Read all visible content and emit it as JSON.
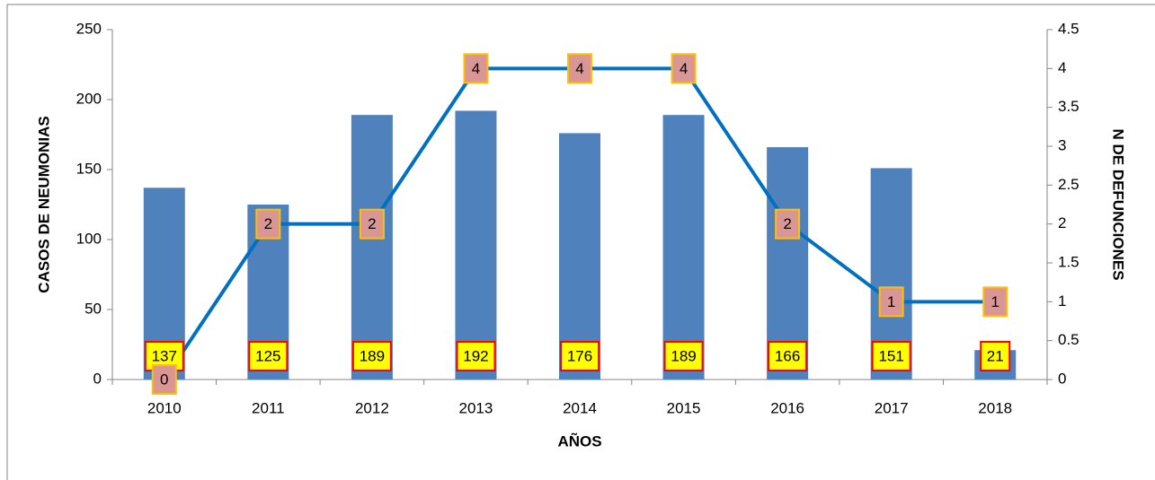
{
  "chart_data": {
    "type": "bar",
    "xlabel": "AÑOS",
    "ylabel": "CASOS DE NEUMONIAS",
    "y2label": "N DE DEFUNCIONES",
    "categories": [
      "2010",
      "2011",
      "2012",
      "2013",
      "2014",
      "2015",
      "2016",
      "2017",
      "2018"
    ],
    "series": [
      {
        "type": "bar",
        "color": "#4f81bd",
        "values": [
          137,
          125,
          189,
          192,
          176,
          189,
          166,
          151,
          21
        ]
      },
      {
        "type": "line",
        "axis": "y2",
        "color": "#0070c0",
        "values": [
          0,
          2,
          2,
          4,
          4,
          4,
          2,
          1,
          1
        ]
      }
    ],
    "ylim": [
      0,
      250
    ],
    "yticks": [
      0,
      50,
      100,
      150,
      200,
      250
    ],
    "y2lim": [
      0,
      4.5
    ],
    "y2ticks": [
      0,
      0.5,
      1,
      1.5,
      2,
      2.5,
      3,
      3.5,
      4,
      4.5
    ],
    "grid": false
  }
}
